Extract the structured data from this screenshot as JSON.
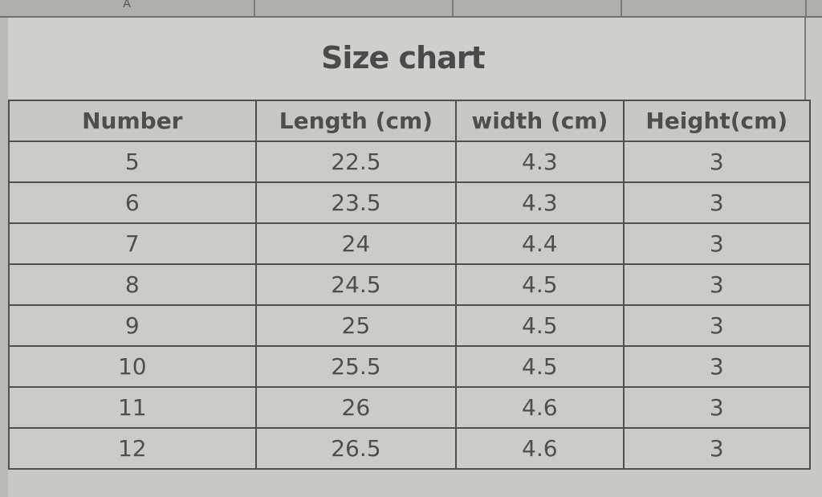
{
  "spreadsheet": {
    "column_headers": [
      "A"
    ],
    "title": "Size chart",
    "table": {
      "headers": [
        "Number",
        "Length (cm)",
        "width (cm)",
        "Height(cm)"
      ],
      "rows": [
        [
          "5",
          "22.5",
          "4.3",
          "3"
        ],
        [
          "6",
          "23.5",
          "4.3",
          "3"
        ],
        [
          "7",
          "24",
          "4.4",
          "3"
        ],
        [
          "8",
          "24.5",
          "4.5",
          "3"
        ],
        [
          "9",
          "25",
          "4.5",
          "3"
        ],
        [
          "10",
          "25.5",
          "4.5",
          "3"
        ],
        [
          "11",
          "26",
          "4.6",
          "3"
        ],
        [
          "12",
          "26.5",
          "4.6",
          "3"
        ]
      ]
    }
  }
}
